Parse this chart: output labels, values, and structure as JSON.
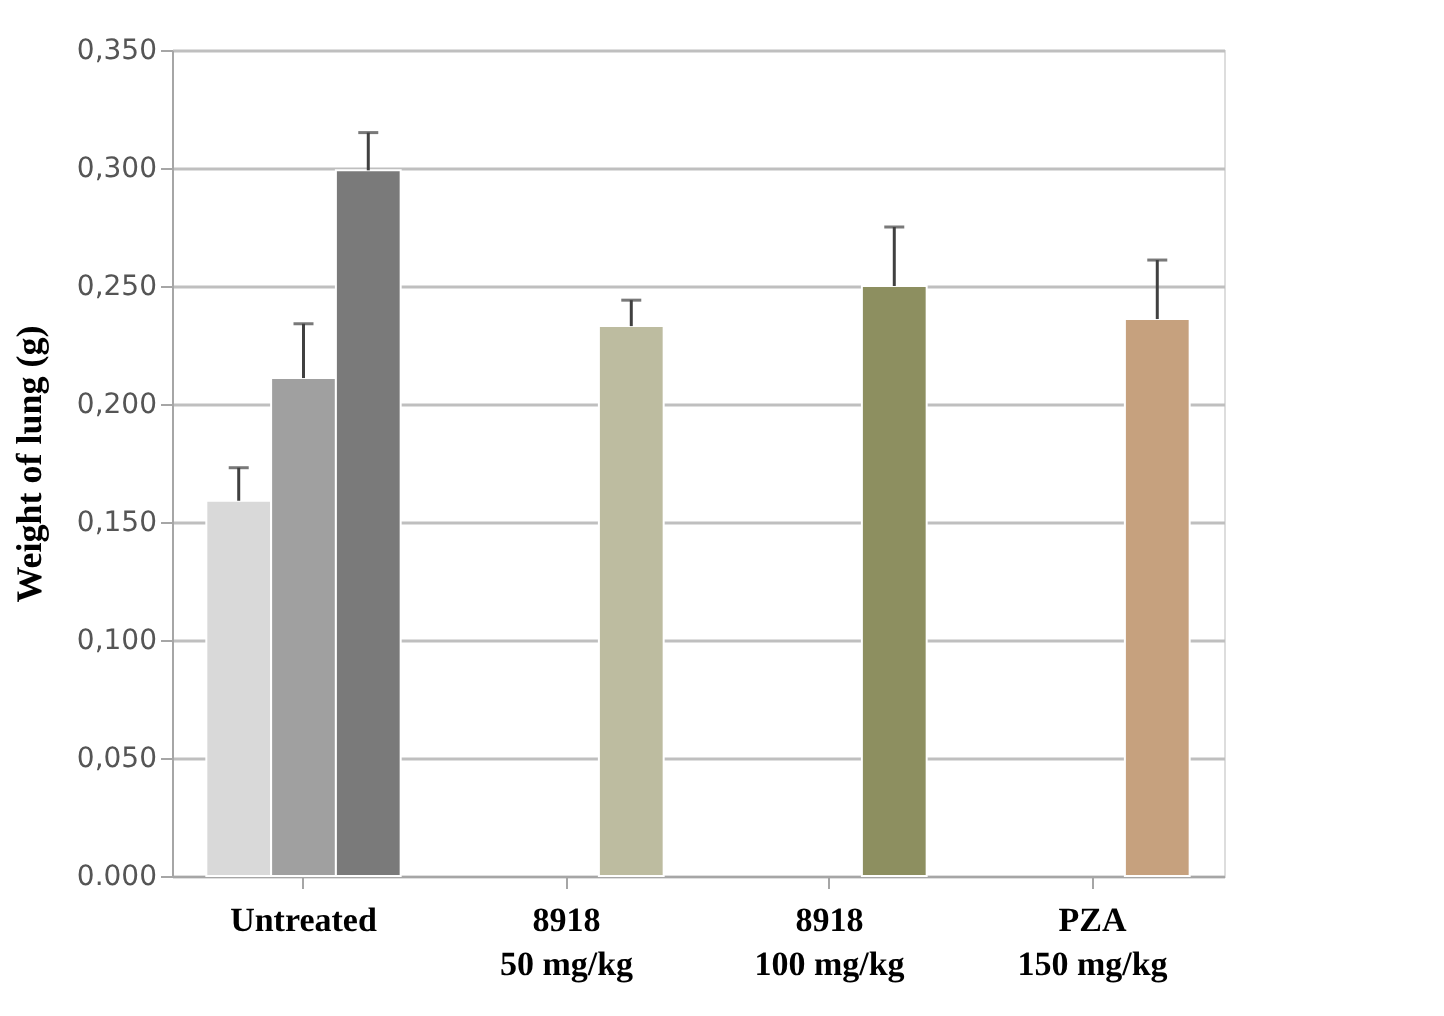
{
  "chart_data": {
    "type": "bar",
    "ylabel": "Weight of lung (g)",
    "categories": [
      "Untreated",
      "8918\n50 mg/kg",
      "8918\n100 mg/kg",
      "PZA\n150 mg/kg"
    ],
    "series": [
      {
        "color": "#d9d9d9",
        "values": [
          0.159,
          null,
          null,
          null
        ],
        "errors": [
          0.014,
          null,
          null,
          null
        ]
      },
      {
        "color": "#a0a0a0",
        "values": [
          0.211,
          null,
          null,
          null
        ],
        "errors": [
          0.023,
          null,
          null,
          null
        ]
      },
      {
        "colors": [
          "#7a7a7a",
          "#bdbca0",
          "#8d8f60",
          "#c6a17e"
        ],
        "values": [
          0.299,
          0.233,
          0.25,
          0.236
        ],
        "errors": [
          0.016,
          0.011,
          0.025,
          0.025
        ]
      }
    ],
    "ylim": [
      0,
      0.35
    ],
    "yticks": [
      {
        "value": 0,
        "label": "0.000"
      },
      {
        "value": 0.05,
        "label": "0,050"
      },
      {
        "value": 0.1,
        "label": "0,100"
      },
      {
        "value": 0.15,
        "label": "0,150"
      },
      {
        "value": 0.2,
        "label": "0,200"
      },
      {
        "value": 0.25,
        "label": "0,250"
      },
      {
        "value": 0.3,
        "label": "0,300"
      },
      {
        "value": 0.35,
        "label": "0,350"
      }
    ],
    "grid": "y"
  }
}
